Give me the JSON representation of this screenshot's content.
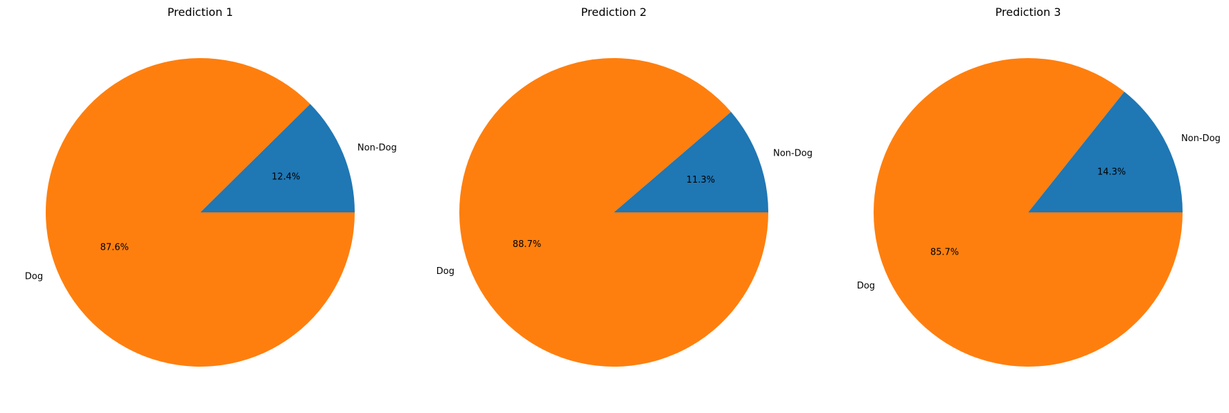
{
  "colors": {
    "background": "#ffffff",
    "text": "#000000"
  },
  "chart_data": [
    {
      "type": "pie",
      "title": "Prediction 1",
      "labels": [
        "Non-Dog",
        "Dog"
      ],
      "values": [
        12.4,
        87.6
      ],
      "value_labels": [
        "12.4%",
        "87.6%"
      ],
      "colors": [
        "#1f77b4",
        "#ff7f0e"
      ]
    },
    {
      "type": "pie",
      "title": "Prediction 2",
      "labels": [
        "Non-Dog",
        "Dog"
      ],
      "values": [
        11.3,
        88.7
      ],
      "value_labels": [
        "11.3%",
        "88.7%"
      ],
      "colors": [
        "#1f77b4",
        "#ff7f0e"
      ]
    },
    {
      "type": "pie",
      "title": "Prediction 3",
      "labels": [
        "Non-Dog",
        "Dog"
      ],
      "values": [
        14.3,
        85.7
      ],
      "value_labels": [
        "14.3%",
        "85.7%"
      ],
      "colors": [
        "#1f77b4",
        "#ff7f0e"
      ]
    }
  ]
}
